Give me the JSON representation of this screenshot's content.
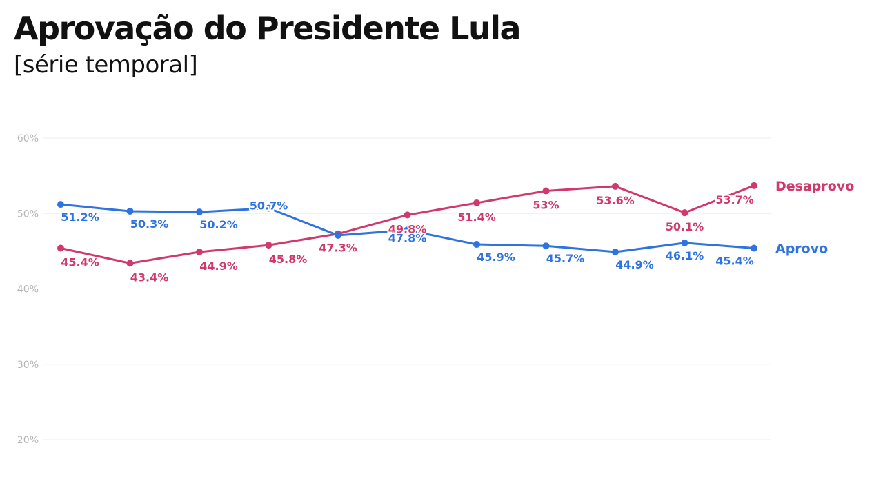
{
  "header": {
    "title": "Aprovação do Presidente Lula",
    "subtitle": "[série temporal]"
  },
  "colors": {
    "aprovo": "#2f73e0",
    "desaprovo": "#d0396a",
    "grid": "#eeeeee",
    "tick": "#b5b5b5"
  },
  "chart_data": {
    "type": "line",
    "x": [
      1,
      2,
      3,
      4,
      5,
      6,
      7,
      8,
      9,
      10,
      11
    ],
    "ylim": [
      20,
      60
    ],
    "yticks": [
      20,
      30,
      40,
      50,
      60
    ],
    "ytick_labels": [
      "20%",
      "30%",
      "40%",
      "50%",
      "60%"
    ],
    "grid": true,
    "legend_placement": "right, at line ends",
    "series": [
      {
        "name": "Desaprovo",
        "values": [
          45.4,
          43.4,
          44.9,
          45.8,
          47.3,
          49.8,
          51.4,
          53,
          53.6,
          50.1,
          53.7
        ],
        "labels": [
          "45.4%",
          "43.4%",
          "44.9%",
          "45.8%",
          "47.3%",
          "49.8%",
          "51.4%",
          "53%",
          "53.6%",
          "50.1%",
          "53.7%"
        ]
      },
      {
        "name": "Aprovo",
        "values": [
          51.2,
          50.3,
          50.2,
          50.7,
          47.1,
          47.8,
          45.9,
          45.7,
          44.9,
          46.1,
          45.4
        ],
        "labels": [
          "51.2%",
          "50.3%",
          "50.2%",
          "50.7%",
          "",
          "47.8%",
          "45.9%",
          "45.7%",
          "44.9%",
          "46.1%",
          "45.4%"
        ]
      }
    ]
  }
}
